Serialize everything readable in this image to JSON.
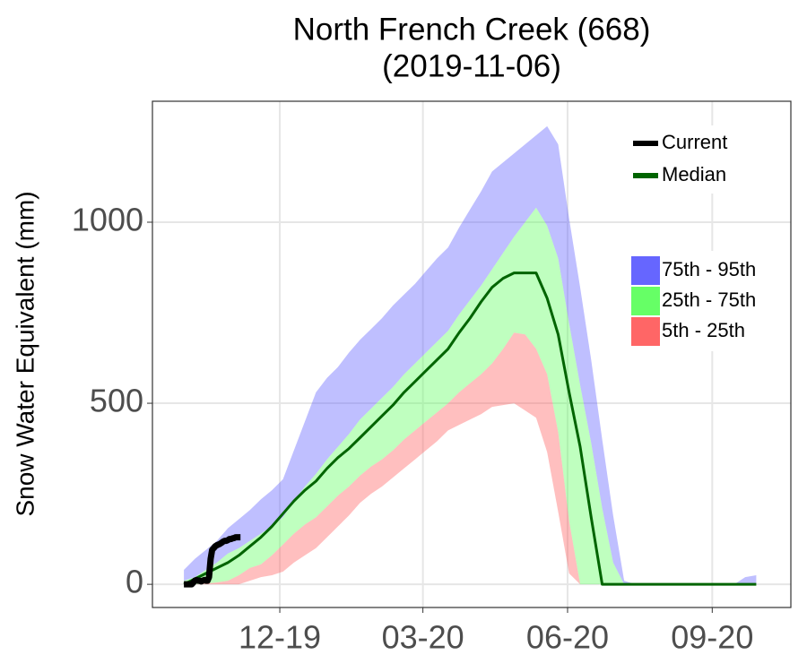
{
  "chart_data": {
    "type": "line",
    "title": "North French Creek (668)",
    "subtitle": "(2019-11-06)",
    "ylabel": "Snow Water Equivalent (mm)",
    "x": [
      0,
      7,
      14,
      21,
      28,
      35,
      42,
      49,
      56,
      63,
      70,
      77,
      84,
      91,
      98,
      105,
      112,
      119,
      126,
      133,
      140,
      147,
      154,
      161,
      168,
      175,
      182,
      189,
      196,
      203,
      210,
      217,
      224,
      231,
      238,
      245,
      252,
      259,
      266,
      273,
      280,
      287,
      294,
      301,
      308,
      315,
      322,
      329,
      336,
      343,
      350,
      357,
      364
    ],
    "xlim": [
      -20,
      386
    ],
    "xticks": [
      {
        "value": 61,
        "label": "12-19"
      },
      {
        "value": 152,
        "label": "03-20"
      },
      {
        "value": 244,
        "label": "06-20"
      },
      {
        "value": 336,
        "label": "09-20"
      }
    ],
    "ylim": [
      -64,
      1334
    ],
    "yticks": [
      0,
      500,
      1000
    ],
    "grid": true,
    "bands": [
      {
        "name": "75th - 95th",
        "color": "#6666ff",
        "lower": [
          10,
          20,
          40,
          60,
          85,
          100,
          120,
          140,
          160,
          185,
          230,
          270,
          305,
          345,
          380,
          415,
          455,
          485,
          515,
          545,
          580,
          610,
          640,
          670,
          700,
          745,
          785,
          825,
          870,
          915,
          960,
          1000,
          1040,
          990,
          900,
          720,
          550,
          390,
          210,
          60,
          0,
          0,
          0,
          0,
          0,
          0,
          0,
          0,
          0,
          0,
          0,
          0,
          0
        ],
        "upper": [
          40,
          70,
          95,
          120,
          155,
          180,
          205,
          235,
          260,
          290,
          370,
          450,
          530,
          570,
          600,
          640,
          675,
          705,
          735,
          770,
          800,
          830,
          865,
          900,
          930,
          985,
          1035,
          1085,
          1140,
          1165,
          1190,
          1215,
          1240,
          1265,
          1215,
          1010,
          820,
          620,
          400,
          190,
          10,
          0,
          0,
          0,
          0,
          0,
          0,
          0,
          0,
          0,
          0,
          20,
          25
        ]
      },
      {
        "name": "25th - 75th",
        "color": "#66ff66",
        "lower": [
          0,
          0,
          2,
          5,
          10,
          25,
          45,
          55,
          80,
          110,
          140,
          165,
          185,
          215,
          245,
          270,
          300,
          325,
          345,
          370,
          400,
          425,
          450,
          475,
          500,
          530,
          555,
          580,
          610,
          650,
          695,
          690,
          650,
          580,
          420,
          175,
          0,
          0,
          0,
          0,
          0,
          0,
          0,
          0,
          0,
          0,
          0,
          0,
          0,
          0,
          0,
          0,
          0
        ],
        "upper": [
          10,
          20,
          40,
          60,
          85,
          100,
          120,
          140,
          160,
          185,
          230,
          270,
          305,
          345,
          380,
          415,
          455,
          485,
          515,
          545,
          580,
          610,
          640,
          670,
          700,
          745,
          785,
          825,
          870,
          915,
          960,
          1000,
          1040,
          990,
          900,
          720,
          550,
          390,
          210,
          60,
          0,
          0,
          0,
          0,
          0,
          0,
          0,
          0,
          0,
          0,
          0,
          0,
          0
        ]
      },
      {
        "name": "5th - 25th",
        "color": "#ff6666",
        "lower": [
          0,
          0,
          0,
          0,
          0,
          0,
          10,
          20,
          25,
          35,
          60,
          80,
          100,
          130,
          160,
          190,
          225,
          250,
          270,
          295,
          320,
          345,
          370,
          395,
          425,
          440,
          455,
          470,
          490,
          495,
          500,
          480,
          460,
          365,
          200,
          30,
          0,
          0,
          0,
          0,
          0,
          0,
          0,
          0,
          0,
          0,
          0,
          0,
          0,
          0,
          0,
          0,
          0
        ],
        "upper": [
          0,
          0,
          2,
          5,
          10,
          25,
          45,
          55,
          80,
          110,
          140,
          165,
          185,
          215,
          245,
          270,
          300,
          325,
          345,
          370,
          400,
          425,
          450,
          475,
          500,
          530,
          555,
          580,
          610,
          650,
          695,
          690,
          650,
          580,
          420,
          175,
          0,
          0,
          0,
          0,
          0,
          0,
          0,
          0,
          0,
          0,
          0,
          0,
          0,
          0,
          0,
          0,
          0
        ]
      }
    ],
    "series": [
      {
        "name": "Current",
        "color": "#000000",
        "x": [
          0,
          1,
          2,
          3,
          4,
          5,
          6,
          7,
          8,
          9,
          10,
          11,
          12,
          13,
          14,
          15,
          16,
          17,
          18,
          19,
          20,
          21,
          22,
          23,
          24,
          25,
          26,
          27,
          28,
          29,
          30,
          31,
          32,
          33,
          34,
          35,
          36
        ],
        "values": [
          0,
          0,
          0,
          0,
          0,
          0,
          5,
          10,
          12,
          10,
          10,
          8,
          10,
          12,
          10,
          10,
          20,
          70,
          95,
          100,
          105,
          108,
          110,
          112,
          115,
          118,
          120,
          120,
          122,
          125,
          125,
          127,
          128,
          130,
          130,
          130,
          130
        ]
      },
      {
        "name": "Median",
        "color": "#006400",
        "values": [
          0,
          15,
          30,
          45,
          60,
          80,
          105,
          130,
          160,
          195,
          230,
          260,
          285,
          320,
          350,
          375,
          405,
          435,
          465,
          495,
          530,
          560,
          590,
          620,
          650,
          695,
          735,
          780,
          820,
          845,
          860,
          860,
          860,
          790,
          690,
          530,
          380,
          185,
          0,
          0,
          0,
          0,
          0,
          0,
          0,
          0,
          0,
          0,
          0,
          0,
          0,
          0,
          0
        ]
      }
    ]
  }
}
